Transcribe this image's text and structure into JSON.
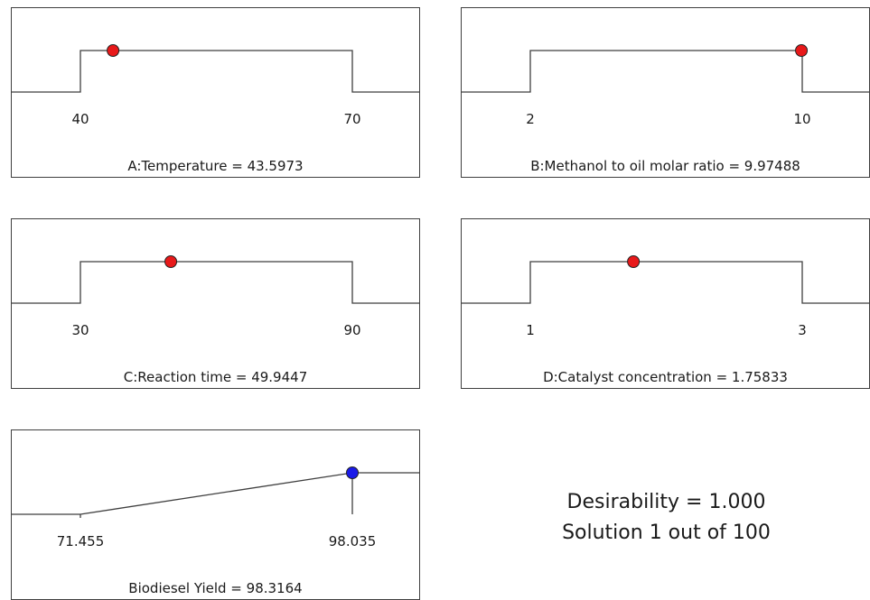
{
  "chart_data": [
    {
      "type": "desirability_ramp",
      "factor": "A:Temperature",
      "value_text": "43.5973",
      "value": 43.5973,
      "low": 40,
      "high": 70,
      "low_label": "40",
      "high_label": "70",
      "shape": "in-range",
      "point_color": "#e8191a"
    },
    {
      "type": "desirability_ramp",
      "factor": "B:Methanol to oil molar ratio",
      "value_text": "9.97488",
      "value": 9.97488,
      "low": 2,
      "high": 10,
      "low_label": "2",
      "high_label": "10",
      "shape": "in-range",
      "point_color": "#e8191a"
    },
    {
      "type": "desirability_ramp",
      "factor": "C:Reaction time",
      "value_text": "49.9447",
      "value": 49.9447,
      "low": 30,
      "high": 90,
      "low_label": "30",
      "high_label": "90",
      "shape": "in-range",
      "point_color": "#e8191a"
    },
    {
      "type": "desirability_ramp",
      "factor": "D:Catalyst concentration",
      "value_text": "1.75833",
      "value": 1.75833,
      "low": 1,
      "high": 3,
      "low_label": "1",
      "high_label": "3",
      "shape": "in-range",
      "point_color": "#e8191a"
    },
    {
      "type": "desirability_ramp",
      "factor": "Biodiesel Yield",
      "value_text": "98.3164",
      "value": 98.3164,
      "low": 71.455,
      "high": 98.035,
      "low_label": "71.455",
      "high_label": "98.035",
      "shape": "maximize",
      "point_color": "#1a1ae8"
    }
  ],
  "summary": {
    "desirability": "Desirability = 1.000",
    "solution": "Solution 1 out of 100"
  }
}
